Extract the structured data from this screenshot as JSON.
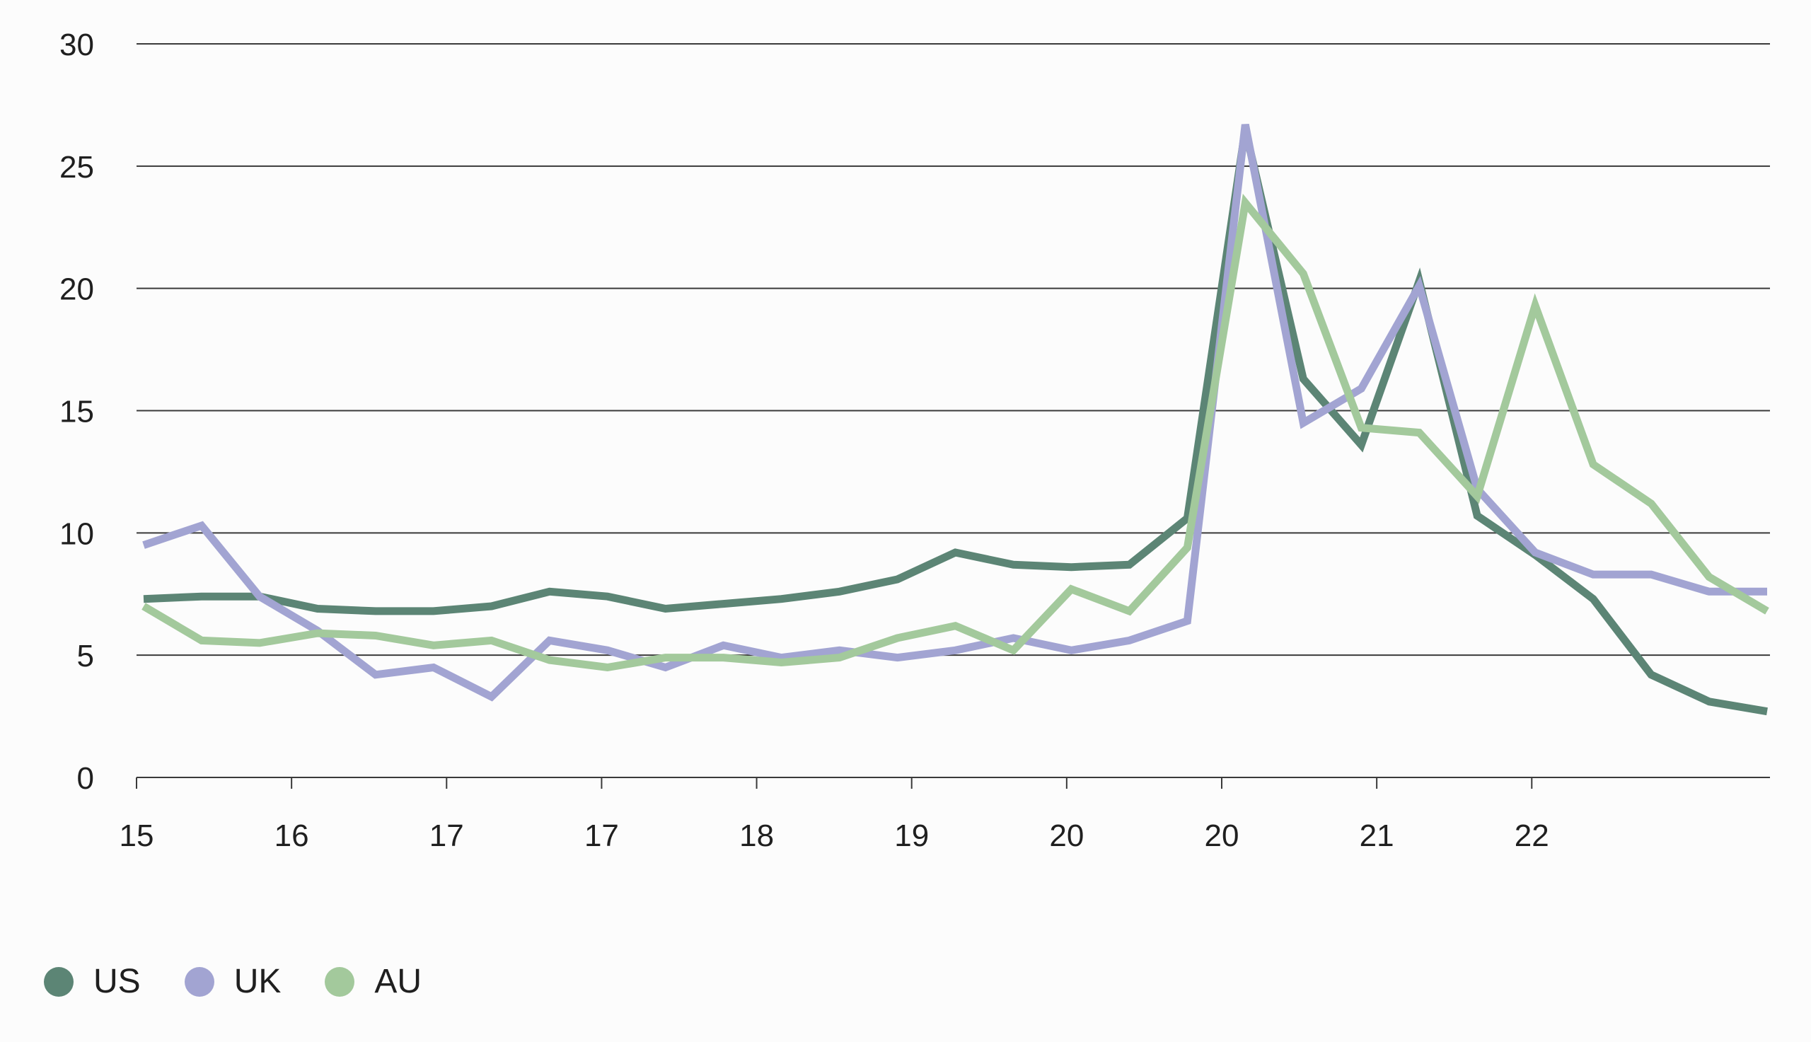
{
  "chart_data": {
    "type": "line",
    "x_tick_labels": [
      "15",
      "16",
      "17",
      "17",
      "18",
      "19",
      "20",
      "20",
      "21",
      "22"
    ],
    "y_ticks": [
      0,
      5,
      10,
      15,
      20,
      25,
      30
    ],
    "ylim": [
      0,
      30
    ],
    "grid": "horizontal",
    "legend_position": "bottom-left",
    "series": [
      {
        "name": "US",
        "color": "#5c8575",
        "values": [
          7.3,
          7.4,
          7.4,
          6.9,
          6.8,
          6.8,
          7.0,
          7.6,
          7.4,
          6.9,
          7.1,
          7.3,
          7.6,
          8.1,
          9.2,
          8.7,
          8.6,
          8.7,
          10.6,
          26.5,
          16.3,
          13.6,
          20.3,
          10.7,
          9.1,
          7.3,
          4.2,
          3.1,
          2.7
        ]
      },
      {
        "name": "UK",
        "color": "#a2a4d2",
        "values": [
          9.5,
          10.3,
          7.4,
          6.0,
          4.2,
          4.5,
          3.3,
          5.6,
          5.2,
          4.5,
          5.4,
          4.9,
          5.2,
          4.9,
          5.2,
          5.7,
          5.2,
          5.6,
          6.4,
          26.7,
          14.5,
          15.9,
          20.1,
          11.8,
          9.2,
          8.3,
          8.3,
          7.6,
          7.6
        ]
      },
      {
        "name": "AU",
        "color": "#a3c99c",
        "values": [
          7.0,
          5.6,
          5.5,
          5.9,
          5.8,
          5.4,
          5.6,
          4.8,
          4.5,
          4.9,
          4.9,
          4.7,
          4.9,
          5.7,
          6.2,
          5.2,
          7.7,
          6.8,
          9.4,
          23.5,
          20.6,
          14.3,
          14.1,
          11.5,
          19.3,
          12.8,
          11.2,
          8.2,
          6.8
        ]
      }
    ]
  }
}
